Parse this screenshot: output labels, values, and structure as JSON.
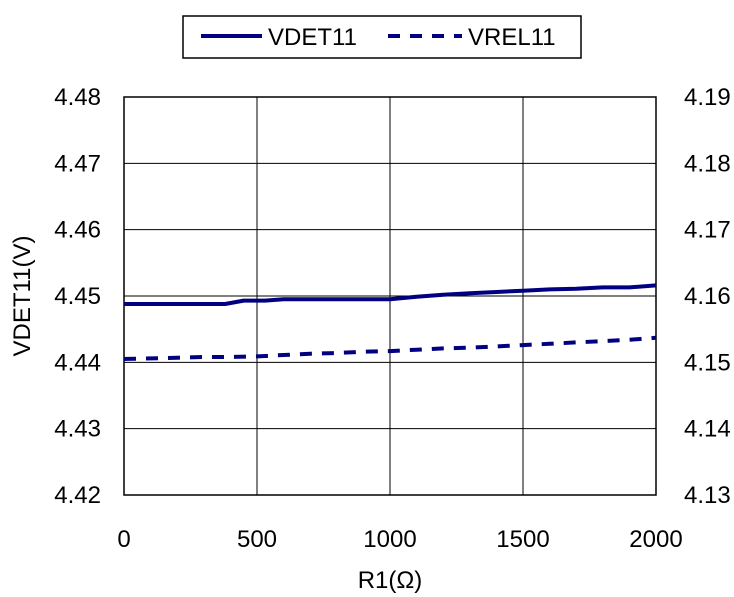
{
  "chart_data": {
    "type": "line",
    "xlabel": "R1(Ω)",
    "ylabel": "VDET11(V)",
    "xlim": [
      0,
      2000
    ],
    "ylim": [
      4.42,
      4.48
    ],
    "y2lim": [
      4.13,
      4.19
    ],
    "x_ticks": [
      "0",
      "500",
      "1000",
      "1500",
      "2000"
    ],
    "y_ticks": [
      "4.42",
      "4.43",
      "4.44",
      "4.45",
      "4.46",
      "4.47",
      "4.48"
    ],
    "y2_ticks": [
      "4.13",
      "4.14",
      "4.15",
      "4.16",
      "4.17",
      "4.18",
      "4.19"
    ],
    "grid": true,
    "legend_position": "top",
    "series": [
      {
        "name": "VDET11",
        "axis": "left",
        "style": "solid",
        "color": "#000080",
        "x": [
          0,
          100,
          200,
          300,
          380,
          450,
          530,
          600,
          700,
          800,
          900,
          1000,
          1100,
          1200,
          1300,
          1400,
          1500,
          1600,
          1700,
          1800,
          1900,
          2000
        ],
        "y": [
          4.4488,
          4.4488,
          4.4488,
          4.4488,
          4.4488,
          4.4493,
          4.4493,
          4.4495,
          4.4495,
          4.4495,
          4.4495,
          4.4495,
          4.4499,
          4.4502,
          4.4504,
          4.4506,
          4.4508,
          4.451,
          4.4511,
          4.4513,
          4.4513,
          4.4516
        ]
      },
      {
        "name": "VREL11",
        "axis": "right",
        "style": "dashed",
        "color": "#000080",
        "x": [
          0,
          100,
          200,
          300,
          400,
          500,
          600,
          700,
          800,
          900,
          1000,
          1100,
          1200,
          1300,
          1400,
          1500,
          1600,
          1700,
          1800,
          1900,
          2000
        ],
        "y": [
          4.1505,
          4.1506,
          4.1507,
          4.1508,
          4.1508,
          4.1509,
          4.1511,
          4.1513,
          4.1514,
          4.1516,
          4.1517,
          4.1519,
          4.1521,
          4.1522,
          4.1524,
          4.1526,
          4.1528,
          4.153,
          4.1532,
          4.1534,
          4.1537
        ]
      }
    ]
  }
}
